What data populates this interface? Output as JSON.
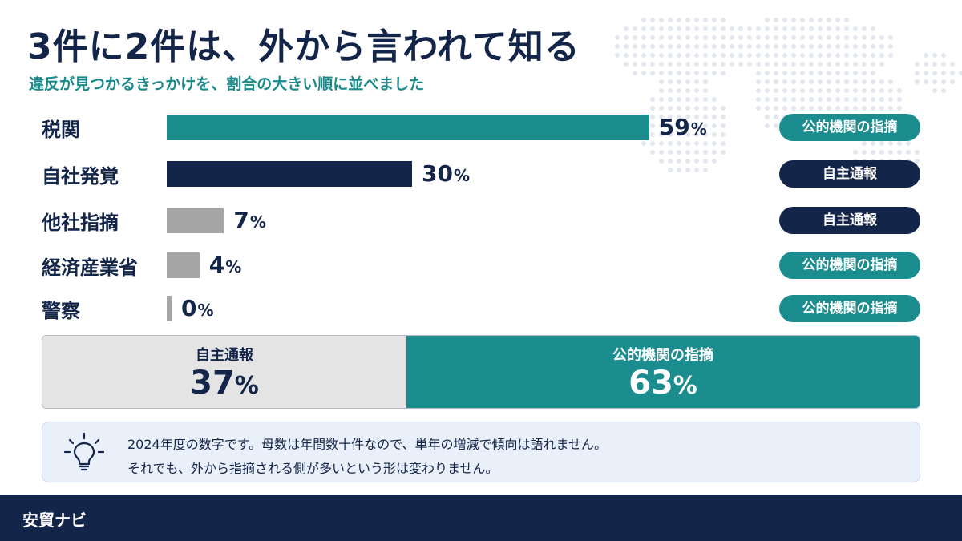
{
  "title": "3件に2件は、外から言われて知る",
  "subtitle": "違反が見つかるきっかけを、割合の大きい順に並べました",
  "colors": {
    "navy": "#14254a",
    "teal": "#1b8d8f",
    "gray": "#a6a6a6",
    "subtitle_teal": "#1a8a8a"
  },
  "chart_data": {
    "type": "bar",
    "orientation": "horizontal",
    "categories": [
      "税関",
      "自社発覚",
      "他社指摘",
      "経済産業省",
      "警察"
    ],
    "values": [
      59,
      30,
      7,
      4,
      0
    ],
    "value_labels": [
      "59",
      "30",
      "7",
      "4",
      "0"
    ],
    "unit": "%",
    "xlim": [
      0,
      100
    ],
    "grid": false,
    "bar_colors": [
      "#1b8d8f",
      "#14254a",
      "#a6a6a6",
      "#a6a6a6",
      "#a6a6a6"
    ],
    "tags": [
      "公的機関の指摘",
      "自主通報",
      "自主通報",
      "公的機関の指摘",
      "公的機関の指摘"
    ],
    "tag_types": [
      "public",
      "self",
      "self",
      "public",
      "public"
    ]
  },
  "summary": {
    "left": {
      "label": "自主通報",
      "value": "37",
      "unit": "%"
    },
    "right": {
      "label": "公的機関の指摘",
      "value": "63",
      "unit": "%"
    },
    "split_fraction": 0.37
  },
  "note": {
    "icon": "lightbulb-icon",
    "line1": "2024年度の数字です。母数は年間数十件なので、単年の増減で傾向は語れません。",
    "line2": "それでも、外から指摘される側が多いという形は変わりません。"
  },
  "footer": {
    "brand": "安貿ナビ"
  }
}
